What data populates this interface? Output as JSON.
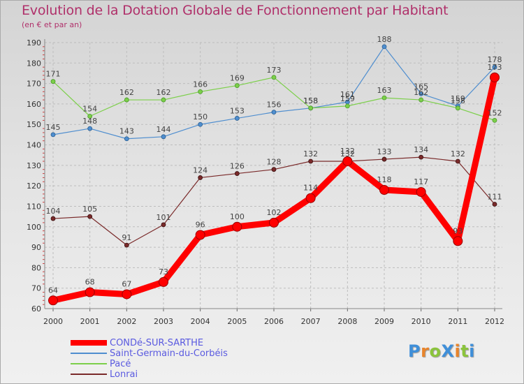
{
  "title": "Evolution de la Dotation Globale de Fonctionnement par Habitant",
  "subtitle": "(en € et par an)",
  "logo": {
    "text": "ProXiti",
    "colors": [
      "#3f8fd9",
      "#e8842b",
      "#8bc43c",
      "#3f8fd9",
      "#e8842b",
      "#8bc43c",
      "#3f8fd9"
    ]
  },
  "chart_data": {
    "type": "line",
    "x": [
      "2000",
      "2001",
      "2002",
      "2003",
      "2004",
      "2005",
      "2006",
      "2007",
      "2008",
      "2009",
      "2010",
      "2011",
      "2012"
    ],
    "ylim": [
      60,
      190
    ],
    "yticks": [
      "60",
      "70",
      "80",
      "90",
      "100",
      "110",
      "120",
      "130",
      "140",
      "150",
      "160",
      "170",
      "180",
      "190"
    ],
    "grid": true,
    "legend_position": "bottom-left",
    "series": [
      {
        "name": "CONDé-SUR-SARTHE",
        "color": "#ff0000",
        "values": [
          64,
          68,
          67,
          73,
          96,
          100,
          102,
          114,
          132,
          118,
          117,
          93,
          173
        ]
      },
      {
        "name": "Saint-Germain-du-Corbéis",
        "color": "#4f8ecf",
        "values": [
          145,
          148,
          143,
          144,
          150,
          153,
          156,
          158,
          161,
          188,
          165,
          159,
          178
        ]
      },
      {
        "name": "Pacé",
        "color": "#7ccf4a",
        "values": [
          171,
          154,
          162,
          162,
          166,
          169,
          173,
          158,
          159,
          163,
          162,
          158,
          152
        ]
      },
      {
        "name": "Lonrai",
        "color": "#7a2a2a",
        "values": [
          104,
          105,
          91,
          101,
          124,
          126,
          128,
          132,
          132,
          133,
          134,
          132,
          111
        ]
      }
    ]
  }
}
